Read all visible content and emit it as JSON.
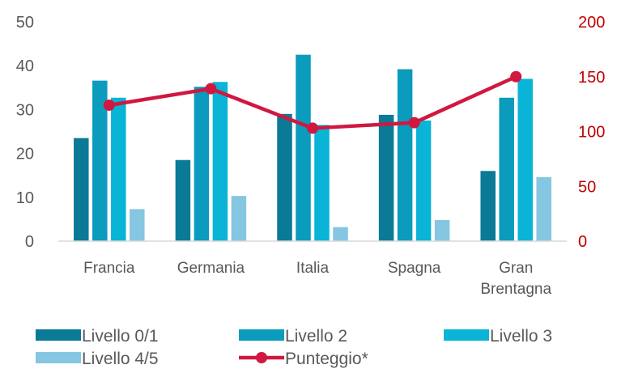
{
  "chart_data": {
    "type": "bar",
    "categories": [
      "Francia",
      "Germania",
      "Italia",
      "Spagna",
      "Gran Brentagna"
    ],
    "category_lines": [
      [
        "Francia"
      ],
      [
        "Germania"
      ],
      [
        "Italia"
      ],
      [
        "Spagna"
      ],
      [
        "Gran",
        "Brentagna"
      ]
    ],
    "series": [
      {
        "name": "Livello 0/1",
        "type": "bar",
        "axis": "left",
        "color": "#0a7a96",
        "values": [
          23.5,
          18.5,
          29,
          28.8,
          16
        ]
      },
      {
        "name": "Livello 2",
        "type": "bar",
        "axis": "left",
        "color": "#0b9bbd",
        "values": [
          36.6,
          35.2,
          42.5,
          39.2,
          32.7
        ]
      },
      {
        "name": "Livello 3",
        "type": "bar",
        "axis": "left",
        "color": "#09b4d6",
        "values": [
          32.7,
          36.3,
          26.5,
          27.5,
          37
        ]
      },
      {
        "name": "Livello 4/5",
        "type": "bar",
        "axis": "left",
        "color": "#85c6e0",
        "values": [
          7.3,
          10.3,
          3.2,
          4.8,
          14.6
        ]
      },
      {
        "name": "Punteggio*",
        "type": "line",
        "axis": "right",
        "color": "#d01840",
        "values": [
          124,
          139,
          103,
          108,
          150
        ]
      }
    ],
    "y_left": {
      "min": 0,
      "max": 50,
      "ticks": [
        "0",
        "10",
        "20",
        "30",
        "40",
        "50"
      ]
    },
    "y_right": {
      "min": 0,
      "max": 200,
      "ticks": [
        "0",
        "50",
        "100",
        "150",
        "200"
      ],
      "color": "#c00000"
    },
    "legend_position": "bottom",
    "grid": false
  }
}
